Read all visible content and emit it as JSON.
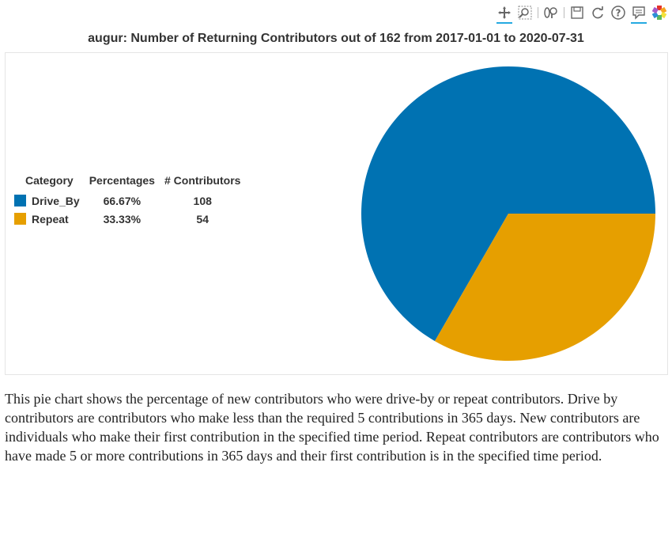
{
  "toolbar": {
    "tools": [
      {
        "name": "pan-icon",
        "active": true
      },
      {
        "name": "box-zoom-icon",
        "active": false
      },
      {
        "name": "wheel-zoom-icon",
        "active": false
      },
      {
        "name": "save-icon",
        "active": false
      },
      {
        "name": "reset-icon",
        "active": false
      },
      {
        "name": "help-icon",
        "active": false
      },
      {
        "name": "hover-icon",
        "active": true
      },
      {
        "name": "bokeh-logo-icon",
        "active": false
      }
    ]
  },
  "chart_data": {
    "type": "pie",
    "title": "augur: Number of Returning Contributors out of 162 from 2017-01-01 to 2020-07-31",
    "legend_placement": "left",
    "legend_headers": [
      "Category",
      "Percentages",
      "# Contributors"
    ],
    "slices": [
      {
        "label": "Drive_By",
        "percentage": "66.67%",
        "value": 108,
        "color": "#0072b2"
      },
      {
        "label": "Repeat",
        "percentage": "33.33%",
        "value": 54,
        "color": "#e69f00"
      }
    ]
  },
  "description": "This pie chart shows the percentage of new contributors who were drive-by or repeat contributors. Drive by contributors are contributors who make less than the required 5 contributions in 365 days. New contributors are individuals who make their first contribution in the specified time period. Repeat contributors are contributors who have made 5 or more contributions in 365 days and their first contribution is in the specified time period."
}
